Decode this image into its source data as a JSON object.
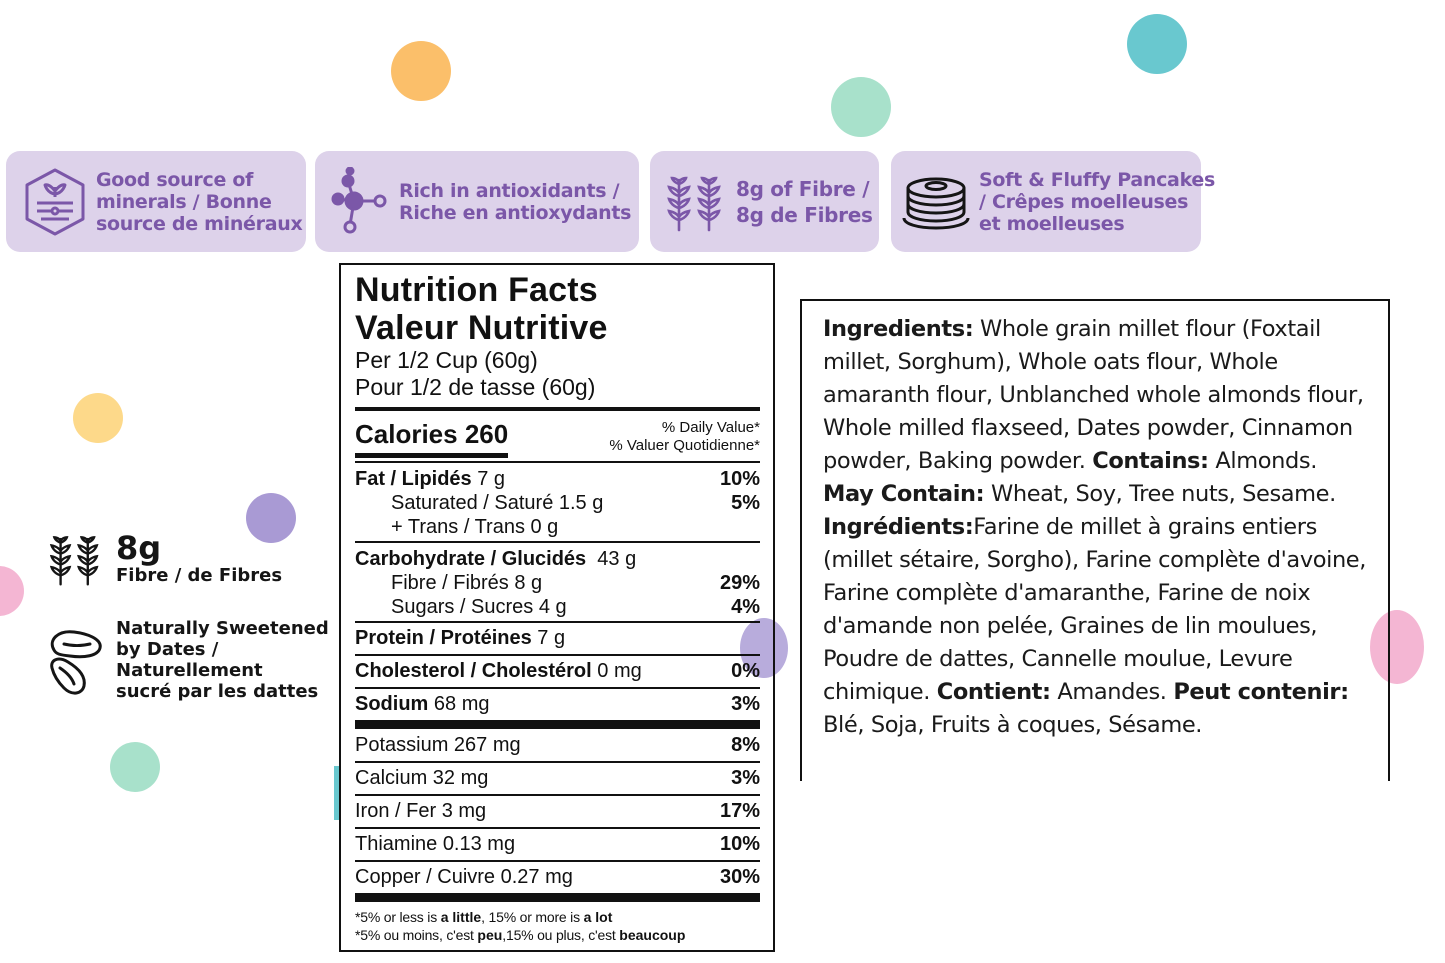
{
  "colors": {
    "badge_bg": "#ddd2ea",
    "badge_text": "#7b57a8",
    "dot_orange": "#fbbf6a",
    "dot_teal": "#69c8cf",
    "dot_mint": "#a8e1cb",
    "dot_yellow": "#fdd98a",
    "dot_purple": "#a99ad4",
    "dot_pink": "#f4b6d3"
  },
  "badges": [
    {
      "icon": "mineral-hexagon-icon",
      "lines": [
        "Good source of",
        "minerals / Bonne",
        "source de minéraux"
      ]
    },
    {
      "icon": "molecule-icon",
      "lines": [
        "Rich in antioxidants /",
        "Riche en antioxydants"
      ]
    },
    {
      "icon": "wheat-icon",
      "lines": [
        "8g of Fibre /",
        "8g de Fibres"
      ]
    },
    {
      "icon": "pancake-stack-icon",
      "lines": [
        "Soft & Fluffy Pancakes",
        "/ Crêpes moelleuses",
        "et moelleuses"
      ]
    }
  ],
  "features": {
    "fibre_value": "8g",
    "fibre_label": "Fibre / de Fibres",
    "sweet_lines": [
      "Naturally Sweetened",
      "by Dates /",
      "Naturellement",
      "sucré par les dattes"
    ]
  },
  "nutrition": {
    "title_en": "Nutrition Facts",
    "title_fr": "Valeur Nutritive",
    "serving_en": "Per 1/2 Cup (60g)",
    "serving_fr": "Pour 1/2 de tasse (60g)",
    "calories": "Calories 260",
    "dv_en": "% Daily Value*",
    "dv_fr": "% Valuer Quotidienne*",
    "fat": {
      "label": "Fat / Lipidés",
      "amount": " 7 g",
      "pct": "10%"
    },
    "saturated": {
      "label": "Saturated / Saturé 1.5 g",
      "pct": "5%"
    },
    "trans": {
      "label": "+ Trans / Trans  0 g"
    },
    "carb": {
      "label": "Carbohydrate / Glucidés",
      "amount": "  43 g"
    },
    "fibre": {
      "label": "Fibre / Fibrés 8 g",
      "pct": "29%"
    },
    "sugars": {
      "label": "Sugars / Sucres 4 g",
      "pct": "4%"
    },
    "protein": {
      "label": "Protein / Protéines",
      "amount": " 7 g"
    },
    "cholesterol": {
      "label": "Cholesterol / Cholestérol",
      "amount": " 0 mg",
      "pct": "0%"
    },
    "sodium": {
      "label": "Sodium",
      "amount": " 68 mg",
      "pct": "3%"
    },
    "potassium": {
      "label": "Potassium 267 mg",
      "pct": "8%"
    },
    "calcium": {
      "label": "Calcium 32 mg",
      "pct": "3%"
    },
    "iron": {
      "label": "Iron / Fer 3 mg",
      "pct": "17%"
    },
    "thiamine": {
      "label": "Thiamine 0.13 mg",
      "pct": "10%"
    },
    "copper": {
      "label": "Copper / Cuivre 0.27 mg",
      "pct": "30%"
    },
    "foot1": {
      "a": "*5% or less is ",
      "b": "a little",
      "c": ", 15% or more is ",
      "d": "a lot"
    },
    "foot2": {
      "a": "*5% ou moins, c'est ",
      "b": "peu",
      "c": ",15% ou plus, c'est ",
      "d": "beaucoup"
    }
  },
  "ingredients": {
    "en_label": "Ingredients:",
    "en_text": " Whole grain millet flour (Foxtail millet, Sorghum), Whole oats flour, Whole amaranth flour, Unblanched whole almonds flour, Whole milled flaxseed, Dates powder, Cinnamon powder, Baking powder. ",
    "contains_label": "Contains:",
    "contains_text": " Almonds. ",
    "may_label": "May Contain:",
    "may_text": " Wheat, Soy, Tree nuts, Sesame.",
    "fr_label": "Ingrédients:",
    "fr_text": "Farine de millet à grains entiers (millet sétaire, Sorgho), Farine complète d'avoine, Farine complète d'amaranthe, Farine de noix d'amande non pelée, Graines de lin moulues, Poudre de dattes, Cannelle moulue, Levure chimique. ",
    "contient_label": "Contient:",
    "contient_text": " Amandes. ",
    "peut_label": "Peut contenir:",
    "peut_text": " Blé, Soja, Fruits à coques, Sésame."
  }
}
